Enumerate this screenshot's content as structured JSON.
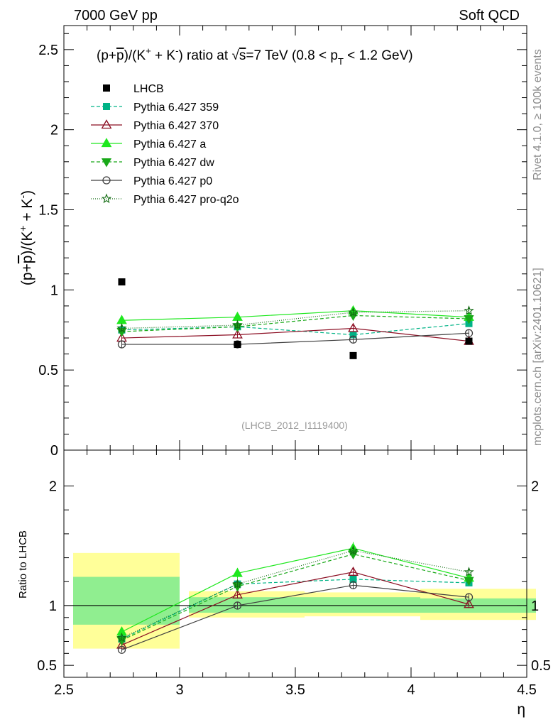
{
  "header": {
    "left": "7000 GeV pp",
    "right": "Soft QCD"
  },
  "side_labels": {
    "rivet": "Rivet 4.1.0, ≥ 100k events",
    "mcplots": "mcplots.cern.ch [arXiv:2401.10621]"
  },
  "colors": {
    "band_stat": "#90ee90",
    "band_total": "#ffff99",
    "359": "#00b386",
    "370": "#8b0d22",
    "a": "#1ee81e",
    "dw": "#18a818",
    "p0": "#404040",
    "pro-q2o": "#126b12"
  },
  "chart_data": {
    "type": "line",
    "title": {
      "full": "(p+p̄)/(K⁺ + K⁻) ratio at √s=7 TeV (0.8 < pT < 1.2 GeV)",
      "ratio_prefix": "(p+",
      "ratio_pbar": "p",
      "ratio_mid": ")/(K",
      "ratio_sup1": "+",
      "ratio_plus": " + K",
      "ratio_sup2": "-",
      "ratio_suffix": ") ratio at ",
      "sqrt_sym": "√",
      "sqrt_arg": "s",
      "energy": "=7 TeV (0.8 < p",
      "sub": "T",
      "energy_end": " < 1.2 GeV)"
    },
    "ylabel_main": {
      "full": "(p+p̄)/(K⁺ + K⁻)",
      "prefix": "(p+",
      "pbar": "p",
      "mid": ")/(K",
      "sup1": "+",
      "plus": " + K",
      "sup2": "-",
      "suffix": ")"
    },
    "ylabel_ratio": "Ratio to LHCB",
    "xlabel": "η",
    "analysis_tag": "(LHCB_2012_I1119400)",
    "xlim": [
      2.5,
      4.5
    ],
    "ylim_main": [
      0,
      2.65
    ],
    "ylim_ratio": [
      0.4,
      2.3
    ],
    "x_ticks": [
      2.5,
      3,
      3.5,
      4,
      4.5
    ],
    "x_tick_labels": [
      "2.5",
      "3",
      "3.5",
      "4",
      "4.5"
    ],
    "y_ticks_main": [
      0,
      0.5,
      1,
      1.5,
      2,
      2.5
    ],
    "y_tick_labels_main": [
      "0",
      "0.5",
      "1",
      "1.5",
      "2",
      "2.5"
    ],
    "y_ticks_ratio": [
      0.5,
      1,
      2
    ],
    "y_tick_labels_ratio": [
      "0.5",
      "1",
      "2"
    ],
    "bins": [
      [
        2.5,
        3.0
      ],
      [
        3.0,
        3.5
      ],
      [
        3.5,
        4.0
      ],
      [
        4.0,
        4.5
      ]
    ],
    "x": [
      2.75,
      3.25,
      3.75,
      4.25
    ],
    "data": {
      "name": "LHCB",
      "values": [
        1.05,
        0.66,
        0.59,
        0.68
      ],
      "ratio_band_stat": [
        [
          0.84,
          1.24
        ],
        [
          0.94,
          1.07
        ],
        [
          0.94,
          1.07
        ],
        [
          0.94,
          1.06
        ]
      ],
      "ratio_band_total": [
        [
          0.64,
          1.44
        ],
        [
          0.9,
          1.12
        ],
        [
          0.91,
          1.11
        ],
        [
          0.88,
          1.14
        ]
      ]
    },
    "series": [
      {
        "name": "Pythia 6.427 359",
        "key": "359",
        "values": [
          0.75,
          0.77,
          0.72,
          0.79
        ],
        "errors": [
          0.02,
          0.02,
          0.02,
          0.02
        ],
        "ratio": [
          0.72,
          1.18,
          1.22,
          1.19
        ],
        "marker": "square",
        "dash": "5,3"
      },
      {
        "name": "Pythia 6.427 370",
        "key": "370",
        "values": [
          0.7,
          0.72,
          0.76,
          0.68
        ],
        "errors": [
          0.02,
          0.02,
          0.02,
          0.02
        ],
        "ratio": [
          0.67,
          1.09,
          1.28,
          1.01
        ],
        "marker": "triangle-open",
        "dash": ""
      },
      {
        "name": "Pythia 6.427 a",
        "key": "a",
        "values": [
          0.81,
          0.83,
          0.87,
          0.83
        ],
        "errors": [
          0.03,
          0.03,
          0.03,
          0.03
        ],
        "ratio": [
          0.78,
          1.27,
          1.48,
          1.23
        ],
        "marker": "triangle",
        "dash": ""
      },
      {
        "name": "Pythia 6.427 dw",
        "key": "dw",
        "values": [
          0.74,
          0.77,
          0.84,
          0.82
        ],
        "errors": [
          0.02,
          0.02,
          0.02,
          0.02
        ],
        "ratio": [
          0.71,
          1.16,
          1.43,
          1.21
        ],
        "marker": "triangle-down",
        "dash": "5,3"
      },
      {
        "name": "Pythia 6.427 p0",
        "key": "p0",
        "values": [
          0.66,
          0.66,
          0.69,
          0.73
        ],
        "errors": [
          0.02,
          0.02,
          0.02,
          0.02
        ],
        "ratio": [
          0.63,
          1.0,
          1.17,
          1.07
        ],
        "marker": "circle-open",
        "dash": ""
      },
      {
        "name": "Pythia 6.427 pro-q2o",
        "key": "pro-q2o",
        "values": [
          0.76,
          0.78,
          0.86,
          0.87
        ],
        "errors": [
          0.02,
          0.02,
          0.02,
          0.02
        ],
        "ratio": [
          0.73,
          1.18,
          1.46,
          1.28
        ],
        "marker": "star",
        "dash": "1,2"
      }
    ]
  }
}
